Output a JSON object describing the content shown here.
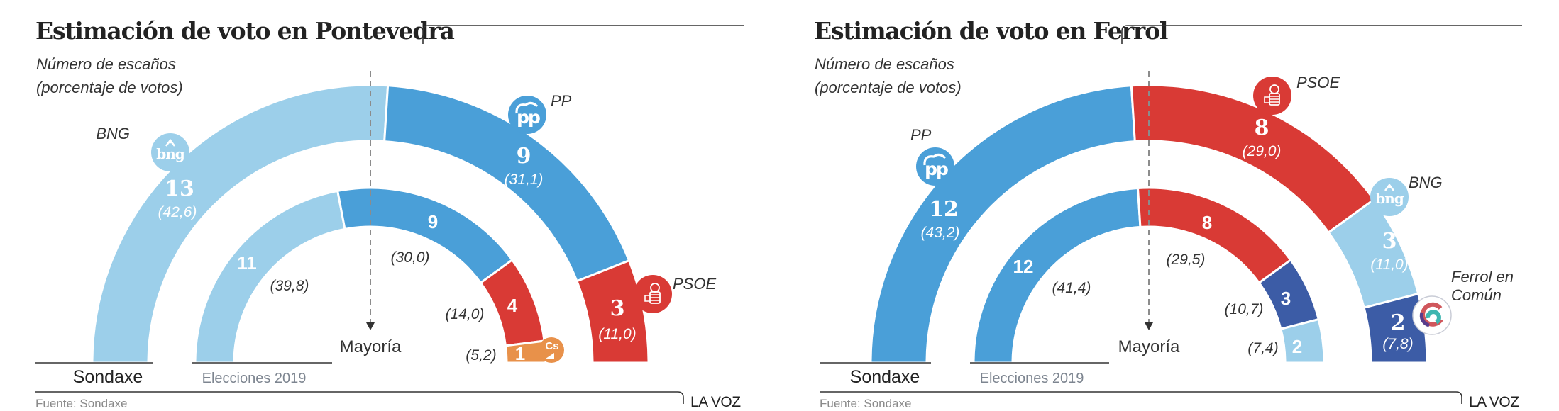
{
  "colors": {
    "pp": "#4a9fd8",
    "bng": "#9ccfea",
    "psoe": "#d93a35",
    "cs": "#e8914a",
    "ferrol_en_comun": "#3c5ca6",
    "text_dark": "#222222",
    "text_muted": "#8a8a8a",
    "majority_line": "#8c8c8c"
  },
  "footer": {
    "source": "Fuente: Sondaxe",
    "brand": "LA VOZ"
  },
  "chart_data": [
    {
      "type": "parliament-semicircle",
      "title": "Estimación de voto en Pontevedra",
      "subtitle_line1": "Número de escaños",
      "subtitle_line2": "(porcentaje de votos)",
      "total_seats": 25,
      "majority_label": "Mayoría",
      "majority_seats": 13,
      "rings": [
        {
          "name": "Sondaxe",
          "label": "Sondaxe",
          "segments": [
            {
              "party": "BNG",
              "seats": 13,
              "seats_label": "13",
              "percent": 42.6,
              "percent_label": "(42,6)",
              "color_key": "bng",
              "logo": "bng-logo",
              "party_label": "BNG"
            },
            {
              "party": "PP",
              "seats": 9,
              "seats_label": "9",
              "percent": 31.1,
              "percent_label": "(31,1)",
              "color_key": "pp",
              "logo": "pp-logo",
              "party_label": "PP"
            },
            {
              "party": "PSOE",
              "seats": 3,
              "seats_label": "3",
              "percent": 11.0,
              "percent_label": "(11,0)",
              "color_key": "psoe",
              "logo": "psoe-logo",
              "party_label": "PSOE"
            }
          ]
        },
        {
          "name": "Elecciones 2019",
          "label": "Elecciones 2019",
          "segments": [
            {
              "party": "BNG",
              "seats": 11,
              "seats_label": "11",
              "percent": 39.8,
              "percent_label": "(39,8)",
              "color_key": "bng"
            },
            {
              "party": "PP",
              "seats": 9,
              "seats_label": "9",
              "percent": 30.0,
              "percent_label": "(30,0)",
              "color_key": "pp"
            },
            {
              "party": "PSOE",
              "seats": 4,
              "seats_label": "4",
              "percent": 14.0,
              "percent_label": "(14,0)",
              "color_key": "psoe"
            },
            {
              "party": "Cs",
              "seats": 1,
              "seats_label": "1",
              "percent": 5.2,
              "percent_label": "(5,2)",
              "color_key": "cs",
              "logo": "cs-logo",
              "logo_text": "Cs"
            }
          ]
        }
      ]
    },
    {
      "type": "parliament-semicircle",
      "title": "Estimación de voto en Ferrol",
      "subtitle_line1": "Número de escaños",
      "subtitle_line2": "(porcentaje de votos)",
      "total_seats": 25,
      "majority_label": "Mayoría",
      "majority_seats": 13,
      "rings": [
        {
          "name": "Sondaxe",
          "label": "Sondaxe",
          "segments": [
            {
              "party": "PP",
              "seats": 12,
              "seats_label": "12",
              "percent": 43.2,
              "percent_label": "(43,2)",
              "color_key": "pp",
              "logo": "pp-logo",
              "party_label": "PP"
            },
            {
              "party": "PSOE",
              "seats": 8,
              "seats_label": "8",
              "percent": 29.0,
              "percent_label": "(29,0)",
              "color_key": "psoe",
              "logo": "psoe-logo",
              "party_label": "PSOE"
            },
            {
              "party": "BNG",
              "seats": 3,
              "seats_label": "3",
              "percent": 11.0,
              "percent_label": "(11,0)",
              "color_key": "bng",
              "logo": "bng-logo",
              "party_label": "BNG"
            },
            {
              "party": "Ferrol en Común",
              "seats": 2,
              "seats_label": "2",
              "percent": 7.8,
              "percent_label": "(7,8)",
              "color_key": "ferrol_en_comun",
              "logo": "ferrol-en-comun-logo",
              "party_label_line1": "Ferrol en",
              "party_label_line2": "Común"
            }
          ]
        },
        {
          "name": "Elecciones 2019",
          "label": "Elecciones 2019",
          "segments": [
            {
              "party": "PP",
              "seats": 12,
              "seats_label": "12",
              "percent": 41.4,
              "percent_label": "(41,4)",
              "color_key": "pp"
            },
            {
              "party": "PSOE",
              "seats": 8,
              "seats_label": "8",
              "percent": 29.5,
              "percent_label": "(29,5)",
              "color_key": "psoe"
            },
            {
              "party": "Ferrol en Común",
              "seats": 3,
              "seats_label": "3",
              "percent": 10.7,
              "percent_label": "(10,7)",
              "color_key": "ferrol_en_comun"
            },
            {
              "party": "BNG",
              "seats": 2,
              "seats_label": "2",
              "percent": 7.4,
              "percent_label": "(7,4)",
              "color_key": "bng"
            }
          ]
        }
      ]
    }
  ]
}
